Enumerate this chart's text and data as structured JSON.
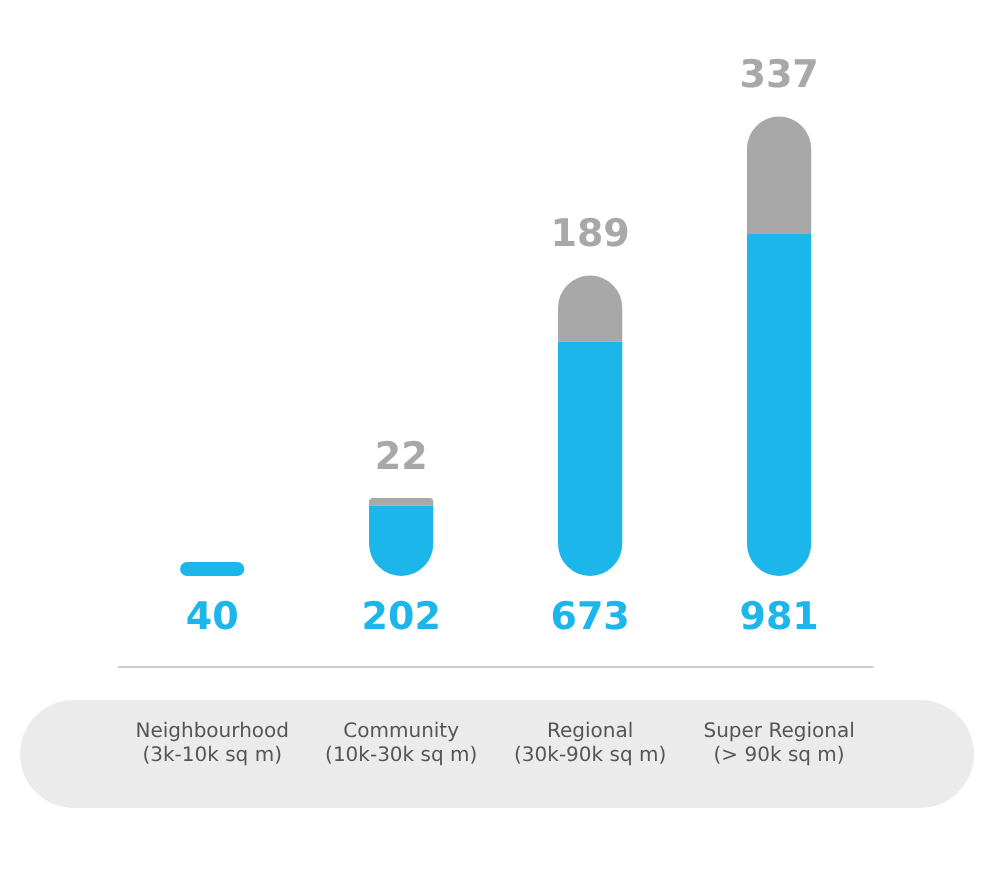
{
  "chart_data": {
    "type": "bar",
    "stacked": true,
    "data_labels": true,
    "categories": [
      "Neighbourhood\n(3k-10k sq m)",
      "Community\n(10k-30k sq m)",
      "Regional\n(30k-90k sq m)",
      "Super Regional\n(> 90k sq m)"
    ],
    "series": [
      {
        "color": "#1cb6ea",
        "values": [
          40,
          202,
          673,
          981
        ]
      },
      {
        "color": "#a8a8a8",
        "values": [
          null,
          22,
          189,
          337
        ]
      }
    ]
  }
}
